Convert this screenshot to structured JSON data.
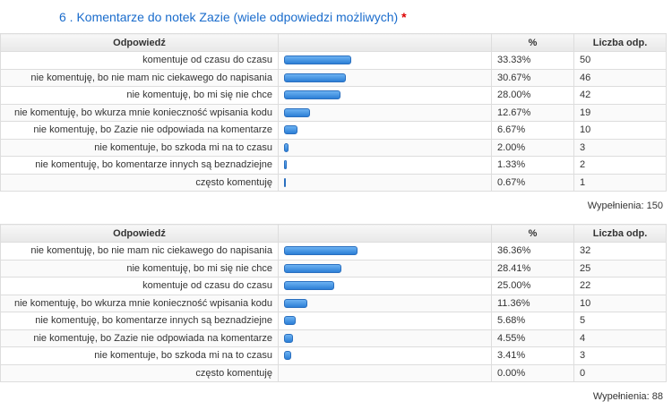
{
  "question": {
    "title": "6 . Komentarze do notek Zazie (wiele odpowiedzi możliwych)",
    "required_mark": "*"
  },
  "tables": [
    {
      "header": [
        "Odpowiedź",
        "%",
        "Liczba odp."
      ],
      "labels": [
        "komentuje od czasu do czasu",
        "nie komentuję, bo nie mam nic ciekawego do napisania",
        "nie komentuję, bo mi się nie chce",
        "nie komentuję, bo wkurza mnie konieczność wpisania kodu",
        "nie komentuję, bo Zazie nie odpowiada na komentarze",
        "nie komentuje, bo szkoda mi na to czasu",
        "nie komentuję, bo komentarze innych są beznadziejne",
        "często komentuję"
      ],
      "values": [
        33.33,
        30.67,
        28.0,
        12.67,
        6.67,
        2.0,
        1.33,
        0.67
      ],
      "value_labels": [
        "33.33%",
        "30.67%",
        "28.00%",
        "12.67%",
        "6.67%",
        "2.00%",
        "1.33%",
        "0.67%"
      ],
      "counts": [
        50,
        46,
        42,
        19,
        10,
        3,
        2,
        1
      ],
      "footer": "Wypełnienia: 150"
    },
    {
      "header": [
        "Odpowiedź",
        "%",
        "Liczba odp."
      ],
      "labels": [
        "nie komentuję, bo nie mam nic ciekawego do napisania",
        "nie komentuję, bo mi się nie chce",
        "komentuje od czasu do czasu",
        "nie komentuję, bo wkurza mnie konieczność wpisania kodu",
        "nie komentuję, bo komentarze innych są beznadziejne",
        "nie komentuję, bo Zazie nie odpowiada na komentarze",
        "nie komentuje, bo szkoda mi na to czasu",
        "często komentuję"
      ],
      "values": [
        36.36,
        28.41,
        25.0,
        11.36,
        5.68,
        4.55,
        3.41,
        0.0
      ],
      "value_labels": [
        "36.36%",
        "28.41%",
        "25.00%",
        "11.36%",
        "5.68%",
        "4.55%",
        "3.41%",
        "0.00%"
      ],
      "counts": [
        32,
        25,
        22,
        10,
        5,
        4,
        3,
        0
      ],
      "footer": "Wypełnienia: 88"
    }
  ]
}
